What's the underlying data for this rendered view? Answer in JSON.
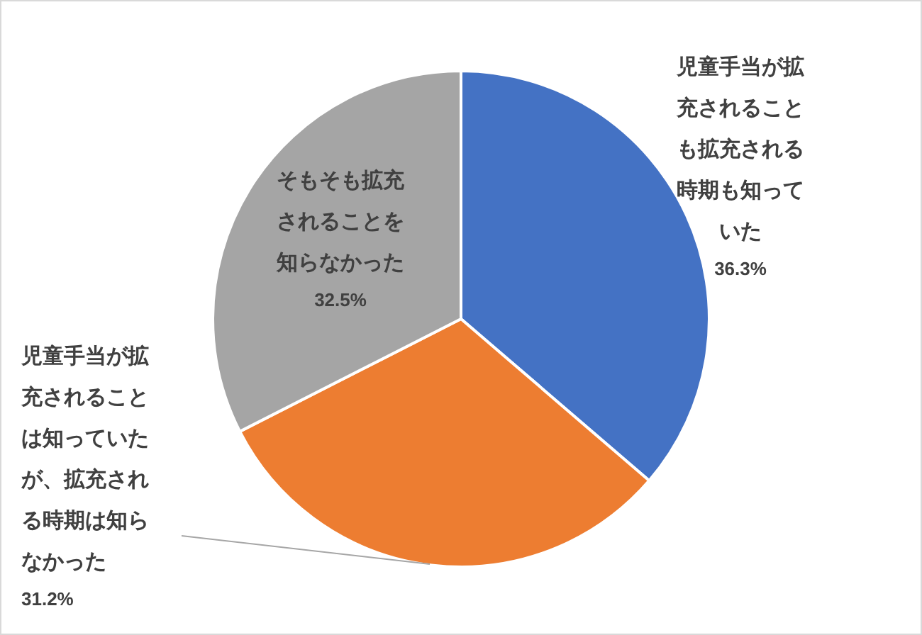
{
  "chart_data": {
    "type": "pie",
    "categories": [
      "児童手当が拡充されることも拡充される時期も知っていた",
      "児童手当が拡充されることは知っていたが、拡充される時期は知らなかった",
      "そもそも拡充されることを知らなかった"
    ],
    "values": [
      36.3,
      31.2,
      32.5
    ],
    "colors": [
      "#4472c4",
      "#ed7d31",
      "#a5a5a5"
    ],
    "value_labels": [
      "36.3%",
      "31.2%",
      "32.5%"
    ]
  }
}
